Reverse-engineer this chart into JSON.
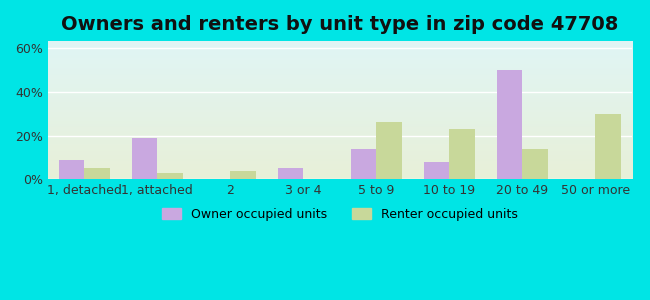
{
  "title": "Owners and renters by unit type in zip code 47708",
  "categories": [
    "1, detached",
    "1, attached",
    "2",
    "3 or 4",
    "5 to 9",
    "10 to 19",
    "20 to 49",
    "50 or more"
  ],
  "owner_values": [
    9,
    19,
    0,
    5,
    14,
    8,
    50,
    0
  ],
  "renter_values": [
    5,
    3,
    4,
    0,
    26,
    23,
    14,
    30
  ],
  "owner_color": "#c9a8e0",
  "renter_color": "#c8d89a",
  "ylim": [
    0,
    63
  ],
  "yticks": [
    0,
    20,
    40,
    60
  ],
  "ytick_labels": [
    "0%",
    "20%",
    "40%",
    "60%"
  ],
  "background_color_top": "#e0f5f5",
  "background_color_bottom": "#e8f0d8",
  "outer_bg": "#00e5e5",
  "bar_width": 0.35,
  "legend_owner": "Owner occupied units",
  "legend_renter": "Renter occupied units",
  "title_fontsize": 14,
  "tick_fontsize": 9
}
